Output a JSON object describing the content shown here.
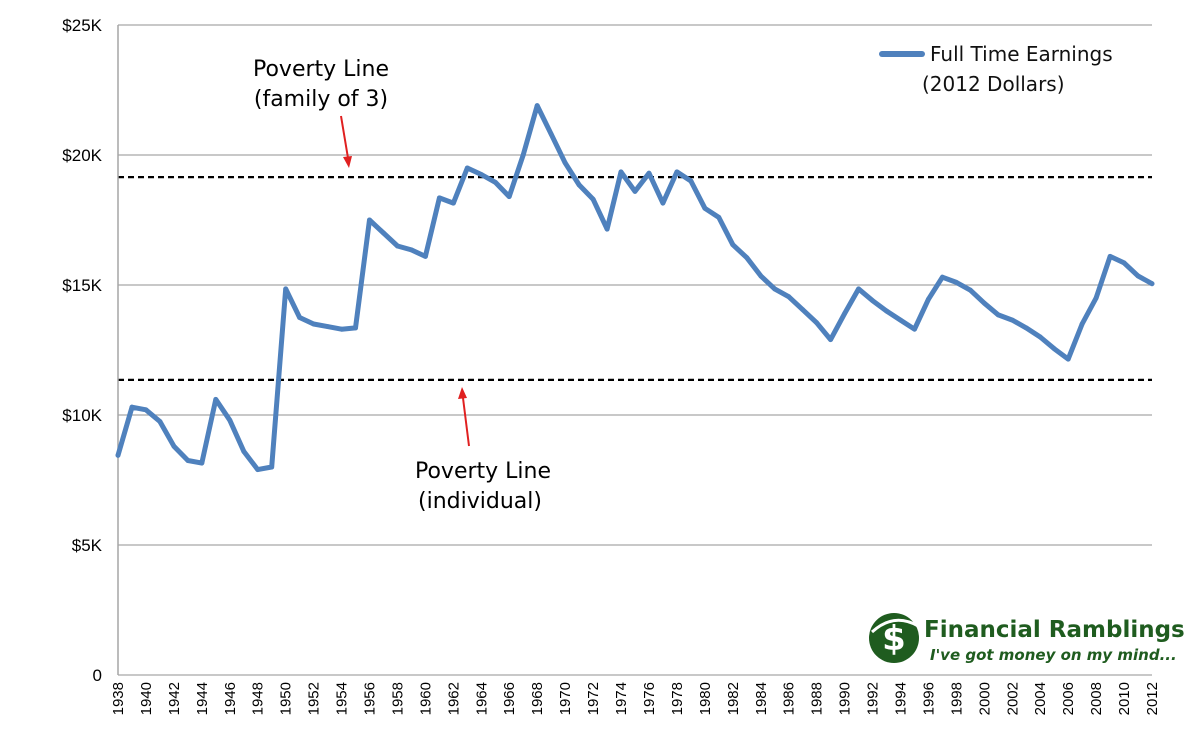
{
  "chart_data": {
    "type": "line",
    "x_start": 1938,
    "x_end": 2012,
    "ylim": [
      0,
      25000
    ],
    "yticks": [
      0,
      5000,
      10000,
      15000,
      20000,
      25000
    ],
    "ytick_labels": [
      "0",
      "$5K",
      "$10K",
      "$15K",
      "$20K",
      "$25K"
    ],
    "xtick_labels": [
      "1938",
      "1940",
      "1942",
      "1944",
      "1946",
      "1948",
      "1950",
      "1952",
      "1954",
      "1956",
      "1958",
      "1960",
      "1962",
      "1964",
      "1966",
      "1968",
      "1970",
      "1972",
      "1974",
      "1976",
      "1978",
      "1980",
      "1982",
      "1984",
      "1986",
      "1988",
      "1990",
      "1992",
      "1994",
      "1996",
      "1998",
      "2000",
      "2002",
      "2004",
      "2006",
      "2008",
      "2010",
      "2012"
    ],
    "grid": "horizontal",
    "legend_position": "top-right",
    "series": [
      {
        "name": "Full Time Earnings",
        "color": "#4f81bd",
        "x": [
          1938,
          1939,
          1940,
          1941,
          1942,
          1943,
          1944,
          1945,
          1946,
          1947,
          1948,
          1949,
          1950,
          1951,
          1952,
          1953,
          1954,
          1955,
          1956,
          1957,
          1958,
          1959,
          1960,
          1961,
          1962,
          1963,
          1964,
          1965,
          1966,
          1967,
          1968,
          1969,
          1970,
          1971,
          1972,
          1973,
          1974,
          1975,
          1976,
          1977,
          1978,
          1979,
          1980,
          1981,
          1982,
          1983,
          1984,
          1985,
          1986,
          1987,
          1988,
          1989,
          1990,
          1991,
          1992,
          1993,
          1994,
          1995,
          1996,
          1997,
          1998,
          1999,
          2000,
          2001,
          2002,
          2003,
          2004,
          2005,
          2006,
          2007,
          2008,
          2009,
          2010,
          2011,
          2012
        ],
        "values": [
          8450,
          10300,
          10200,
          9750,
          8800,
          8250,
          8150,
          10600,
          9800,
          8600,
          7900,
          8000,
          14850,
          13750,
          13500,
          13400,
          13300,
          13350,
          17500,
          17000,
          16500,
          16350,
          16100,
          18350,
          18150,
          19500,
          19250,
          18950,
          18400,
          20000,
          21900,
          20800,
          19700,
          18850,
          18300,
          17150,
          19350,
          18600,
          19300,
          18150,
          19350,
          19000,
          17950,
          17600,
          16550,
          16050,
          15350,
          14850,
          14550,
          14050,
          13550,
          12900,
          13900,
          14850,
          14400,
          14000,
          13650,
          13300,
          14450,
          15300,
          15100,
          14800,
          14300,
          13850,
          13650,
          13350,
          13000,
          12550,
          12150,
          13500,
          14500,
          16100,
          15850,
          15350,
          15050
        ]
      }
    ],
    "reference_lines": [
      {
        "value": 19150,
        "style": "dashed"
      },
      {
        "value": 11350,
        "style": "dashed"
      }
    ],
    "annotations": [
      {
        "line1": "Poverty Line",
        "line2": "(family of 3)",
        "arrow_target": 19150
      },
      {
        "line1": "Poverty Line",
        "line2": "(individual)",
        "arrow_target": 11350
      }
    ],
    "legend": {
      "label_line1": "Full Time Earnings",
      "label_line2": "(2012 Dollars)"
    }
  },
  "logo": {
    "title": "Financial Ramblings",
    "tagline": "I've got money on my mind...",
    "symbol": "$",
    "color": "#1f5c1f"
  },
  "colors": {
    "arrow": "#e02020",
    "grid": "#a6a6a6"
  }
}
